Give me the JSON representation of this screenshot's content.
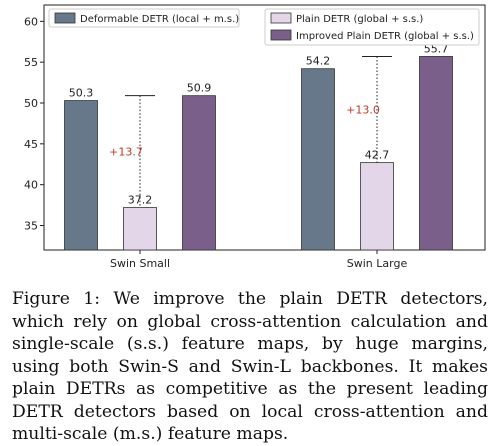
{
  "chart_data": {
    "type": "bar",
    "categories": [
      "Swin Small",
      "Swin Large"
    ],
    "series": [
      {
        "name": "Deformable DETR (local + m.s.)",
        "values": [
          50.3,
          54.2
        ],
        "color": "#66788a"
      },
      {
        "name": "Plain DETR (global + s.s.)",
        "values": [
          37.2,
          42.7
        ],
        "color": "#e2d6e8"
      },
      {
        "name": "Improved Plain DETR (global + s.s.)",
        "values": [
          50.9,
          55.7
        ],
        "color": "#7a5f8a"
      }
    ],
    "data_labels": [
      [
        "50.3",
        "54.2"
      ],
      [
        "37.2",
        "42.7"
      ],
      [
        "50.9",
        "55.7"
      ]
    ],
    "annotations": [
      {
        "category": "Swin Small",
        "text": "+13.7",
        "from": 37.2,
        "to": 50.9
      },
      {
        "category": "Swin Large",
        "text": "+13.0",
        "from": 42.7,
        "to": 55.7
      }
    ],
    "yticks": [
      35,
      40,
      45,
      50,
      55,
      60
    ],
    "ylim": [
      32,
      62
    ],
    "annotation_color": "#c0392b",
    "legend_placement": "top",
    "grid": false
  },
  "caption": "Figure 1: We improve the plain DETR detectors, which rely on global cross-attention calculation and single-scale (s.s.) feature maps, by huge margins, using both Swin-S and Swin-L backbones. It makes plain DETRs as competitive as the present leading DETR detectors based on local cross-attention and multi-scale (m.s.) feature maps."
}
